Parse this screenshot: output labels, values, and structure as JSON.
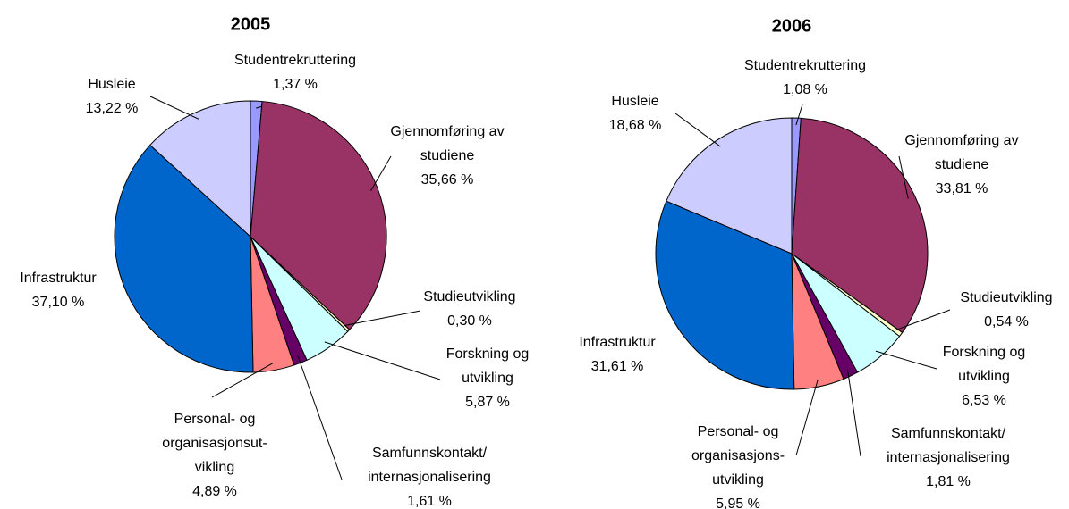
{
  "chart_data": [
    {
      "type": "pie",
      "title": "2005",
      "categories": [
        [
          "Studentrekruttering"
        ],
        [
          "Gjennomføring av",
          "studiene"
        ],
        [
          "Studieutvikling"
        ],
        [
          "Forskning og",
          "utvikling"
        ],
        [
          "Samfunnskontakt/",
          "internasjonalisering"
        ],
        [
          "Personal- og",
          "organisasjonsut-",
          "vikling"
        ],
        [
          "Infrastruktur"
        ],
        [
          "Husleie"
        ]
      ],
      "values": [
        1.37,
        35.66,
        0.3,
        5.87,
        1.61,
        4.89,
        37.1,
        13.22
      ],
      "value_labels": [
        "1,37 %",
        "35,66 %",
        "0,30 %",
        "5,87 %",
        "1,61 %",
        "4,89 %",
        "37,10 %",
        "13,22 %"
      ],
      "colors": [
        "#9999ff",
        "#993366",
        "#ffffcc",
        "#ccffff",
        "#660066",
        "#ff8080",
        "#0066cc",
        "#ccccff"
      ]
    },
    {
      "type": "pie",
      "title": "2006",
      "categories": [
        [
          "Studentrekruttering"
        ],
        [
          "Gjennomføring av",
          "studiene"
        ],
        [
          "Studieutvikling"
        ],
        [
          "Forskning og",
          "utvikling"
        ],
        [
          "Samfunnskontakt/",
          "internasjonalisering"
        ],
        [
          "Personal- og",
          "organisasjons-",
          "utvikling"
        ],
        [
          "Infrastruktur"
        ],
        [
          "Husleie"
        ]
      ],
      "values": [
        1.08,
        33.81,
        0.54,
        6.53,
        1.81,
        5.95,
        31.61,
        18.68
      ],
      "value_labels": [
        "1,08 %",
        "33,81 %",
        "0,54 %",
        "6,53 %",
        "1,81 %",
        "5,95 %",
        "31,61 %",
        "18,68 %"
      ],
      "colors": [
        "#9999ff",
        "#993366",
        "#ffffcc",
        "#ccffff",
        "#660066",
        "#ff8080",
        "#0066cc",
        "#ccccff"
      ]
    }
  ]
}
